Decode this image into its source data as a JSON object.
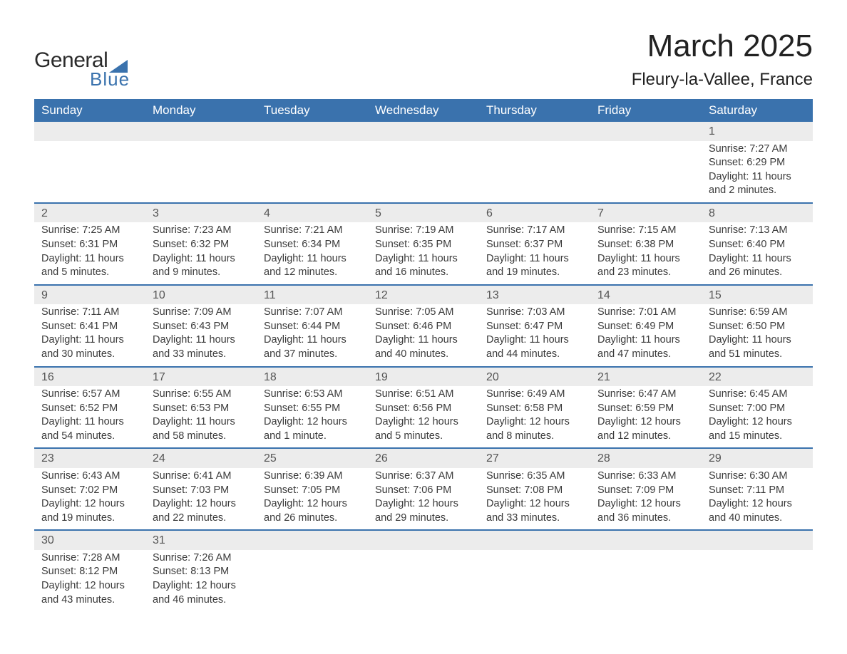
{
  "logo": {
    "text_general": "General",
    "text_blue": "Blue",
    "accent_color": "#3a72ad"
  },
  "title": "March 2025",
  "location": "Fleury-la-Vallee, France",
  "colors": {
    "header_bg": "#3a72ad",
    "header_text": "#ffffff",
    "daynum_bg": "#ececec",
    "row_border": "#3a72ad",
    "body_text": "#3a3a3a"
  },
  "day_headers": [
    "Sunday",
    "Monday",
    "Tuesday",
    "Wednesday",
    "Thursday",
    "Friday",
    "Saturday"
  ],
  "weeks": [
    [
      null,
      null,
      null,
      null,
      null,
      null,
      {
        "n": "1",
        "sr": "Sunrise: 7:27 AM",
        "ss": "Sunset: 6:29 PM",
        "dl1": "Daylight: 11 hours",
        "dl2": "and 2 minutes."
      }
    ],
    [
      {
        "n": "2",
        "sr": "Sunrise: 7:25 AM",
        "ss": "Sunset: 6:31 PM",
        "dl1": "Daylight: 11 hours",
        "dl2": "and 5 minutes."
      },
      {
        "n": "3",
        "sr": "Sunrise: 7:23 AM",
        "ss": "Sunset: 6:32 PM",
        "dl1": "Daylight: 11 hours",
        "dl2": "and 9 minutes."
      },
      {
        "n": "4",
        "sr": "Sunrise: 7:21 AM",
        "ss": "Sunset: 6:34 PM",
        "dl1": "Daylight: 11 hours",
        "dl2": "and 12 minutes."
      },
      {
        "n": "5",
        "sr": "Sunrise: 7:19 AM",
        "ss": "Sunset: 6:35 PM",
        "dl1": "Daylight: 11 hours",
        "dl2": "and 16 minutes."
      },
      {
        "n": "6",
        "sr": "Sunrise: 7:17 AM",
        "ss": "Sunset: 6:37 PM",
        "dl1": "Daylight: 11 hours",
        "dl2": "and 19 minutes."
      },
      {
        "n": "7",
        "sr": "Sunrise: 7:15 AM",
        "ss": "Sunset: 6:38 PM",
        "dl1": "Daylight: 11 hours",
        "dl2": "and 23 minutes."
      },
      {
        "n": "8",
        "sr": "Sunrise: 7:13 AM",
        "ss": "Sunset: 6:40 PM",
        "dl1": "Daylight: 11 hours",
        "dl2": "and 26 minutes."
      }
    ],
    [
      {
        "n": "9",
        "sr": "Sunrise: 7:11 AM",
        "ss": "Sunset: 6:41 PM",
        "dl1": "Daylight: 11 hours",
        "dl2": "and 30 minutes."
      },
      {
        "n": "10",
        "sr": "Sunrise: 7:09 AM",
        "ss": "Sunset: 6:43 PM",
        "dl1": "Daylight: 11 hours",
        "dl2": "and 33 minutes."
      },
      {
        "n": "11",
        "sr": "Sunrise: 7:07 AM",
        "ss": "Sunset: 6:44 PM",
        "dl1": "Daylight: 11 hours",
        "dl2": "and 37 minutes."
      },
      {
        "n": "12",
        "sr": "Sunrise: 7:05 AM",
        "ss": "Sunset: 6:46 PM",
        "dl1": "Daylight: 11 hours",
        "dl2": "and 40 minutes."
      },
      {
        "n": "13",
        "sr": "Sunrise: 7:03 AM",
        "ss": "Sunset: 6:47 PM",
        "dl1": "Daylight: 11 hours",
        "dl2": "and 44 minutes."
      },
      {
        "n": "14",
        "sr": "Sunrise: 7:01 AM",
        "ss": "Sunset: 6:49 PM",
        "dl1": "Daylight: 11 hours",
        "dl2": "and 47 minutes."
      },
      {
        "n": "15",
        "sr": "Sunrise: 6:59 AM",
        "ss": "Sunset: 6:50 PM",
        "dl1": "Daylight: 11 hours",
        "dl2": "and 51 minutes."
      }
    ],
    [
      {
        "n": "16",
        "sr": "Sunrise: 6:57 AM",
        "ss": "Sunset: 6:52 PM",
        "dl1": "Daylight: 11 hours",
        "dl2": "and 54 minutes."
      },
      {
        "n": "17",
        "sr": "Sunrise: 6:55 AM",
        "ss": "Sunset: 6:53 PM",
        "dl1": "Daylight: 11 hours",
        "dl2": "and 58 minutes."
      },
      {
        "n": "18",
        "sr": "Sunrise: 6:53 AM",
        "ss": "Sunset: 6:55 PM",
        "dl1": "Daylight: 12 hours",
        "dl2": "and 1 minute."
      },
      {
        "n": "19",
        "sr": "Sunrise: 6:51 AM",
        "ss": "Sunset: 6:56 PM",
        "dl1": "Daylight: 12 hours",
        "dl2": "and 5 minutes."
      },
      {
        "n": "20",
        "sr": "Sunrise: 6:49 AM",
        "ss": "Sunset: 6:58 PM",
        "dl1": "Daylight: 12 hours",
        "dl2": "and 8 minutes."
      },
      {
        "n": "21",
        "sr": "Sunrise: 6:47 AM",
        "ss": "Sunset: 6:59 PM",
        "dl1": "Daylight: 12 hours",
        "dl2": "and 12 minutes."
      },
      {
        "n": "22",
        "sr": "Sunrise: 6:45 AM",
        "ss": "Sunset: 7:00 PM",
        "dl1": "Daylight: 12 hours",
        "dl2": "and 15 minutes."
      }
    ],
    [
      {
        "n": "23",
        "sr": "Sunrise: 6:43 AM",
        "ss": "Sunset: 7:02 PM",
        "dl1": "Daylight: 12 hours",
        "dl2": "and 19 minutes."
      },
      {
        "n": "24",
        "sr": "Sunrise: 6:41 AM",
        "ss": "Sunset: 7:03 PM",
        "dl1": "Daylight: 12 hours",
        "dl2": "and 22 minutes."
      },
      {
        "n": "25",
        "sr": "Sunrise: 6:39 AM",
        "ss": "Sunset: 7:05 PM",
        "dl1": "Daylight: 12 hours",
        "dl2": "and 26 minutes."
      },
      {
        "n": "26",
        "sr": "Sunrise: 6:37 AM",
        "ss": "Sunset: 7:06 PM",
        "dl1": "Daylight: 12 hours",
        "dl2": "and 29 minutes."
      },
      {
        "n": "27",
        "sr": "Sunrise: 6:35 AM",
        "ss": "Sunset: 7:08 PM",
        "dl1": "Daylight: 12 hours",
        "dl2": "and 33 minutes."
      },
      {
        "n": "28",
        "sr": "Sunrise: 6:33 AM",
        "ss": "Sunset: 7:09 PM",
        "dl1": "Daylight: 12 hours",
        "dl2": "and 36 minutes."
      },
      {
        "n": "29",
        "sr": "Sunrise: 6:30 AM",
        "ss": "Sunset: 7:11 PM",
        "dl1": "Daylight: 12 hours",
        "dl2": "and 40 minutes."
      }
    ],
    [
      {
        "n": "30",
        "sr": "Sunrise: 7:28 AM",
        "ss": "Sunset: 8:12 PM",
        "dl1": "Daylight: 12 hours",
        "dl2": "and 43 minutes."
      },
      {
        "n": "31",
        "sr": "Sunrise: 7:26 AM",
        "ss": "Sunset: 8:13 PM",
        "dl1": "Daylight: 12 hours",
        "dl2": "and 46 minutes."
      },
      null,
      null,
      null,
      null,
      null
    ]
  ]
}
